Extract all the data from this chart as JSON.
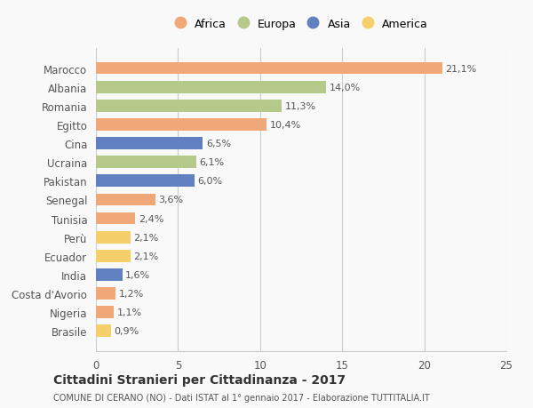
{
  "countries": [
    "Marocco",
    "Albania",
    "Romania",
    "Egitto",
    "Cina",
    "Ucraina",
    "Pakistan",
    "Senegal",
    "Tunisia",
    "Perù",
    "Ecuador",
    "India",
    "Costa d'Avorio",
    "Nigeria",
    "Brasile"
  ],
  "values": [
    21.1,
    14.0,
    11.3,
    10.4,
    6.5,
    6.1,
    6.0,
    3.6,
    2.4,
    2.1,
    2.1,
    1.6,
    1.2,
    1.1,
    0.9
  ],
  "labels": [
    "21,1%",
    "14,0%",
    "11,3%",
    "10,4%",
    "6,5%",
    "6,1%",
    "6,0%",
    "3,6%",
    "2,4%",
    "2,1%",
    "2,1%",
    "1,6%",
    "1,2%",
    "1,1%",
    "0,9%"
  ],
  "continents": [
    "Africa",
    "Europa",
    "Europa",
    "Africa",
    "Asia",
    "Europa",
    "Asia",
    "Africa",
    "Africa",
    "America",
    "America",
    "Asia",
    "Africa",
    "Africa",
    "America"
  ],
  "colors": {
    "Africa": "#F0A878",
    "Europa": "#B5C98A",
    "Asia": "#6080C0",
    "America": "#F5D06A"
  },
  "legend_order": [
    "Africa",
    "Europa",
    "Asia",
    "America"
  ],
  "xlim": [
    0,
    25
  ],
  "xticks": [
    0,
    5,
    10,
    15,
    20,
    25
  ],
  "title": "Cittadini Stranieri per Cittadinanza - 2017",
  "subtitle": "COMUNE DI CERANO (NO) - Dati ISTAT al 1° gennaio 2017 - Elaborazione TUTTITALIA.IT",
  "background_color": "#f9f9f9",
  "grid_color": "#cccccc",
  "bar_height": 0.65
}
